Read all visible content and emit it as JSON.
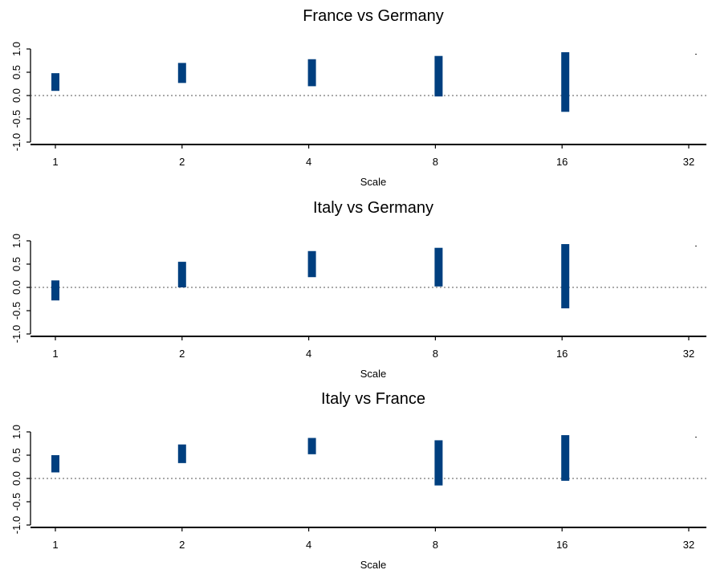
{
  "colors": {
    "bar": "#003f7f",
    "axis": "#000000",
    "zero_line": "#555555"
  },
  "chart_data": [
    {
      "type": "bar",
      "subtype": "range",
      "title": "France vs Germany",
      "xlabel": "Scale",
      "ylabel": "",
      "x_scale": "log2",
      "xticks": [
        "1",
        "2",
        "4",
        "8",
        "16",
        "32"
      ],
      "yticks": [
        "-1.0",
        "-0.5",
        "0.0",
        "0.5",
        "1.0"
      ],
      "ylim": [
        -1.0,
        1.0
      ],
      "zero_line": "dotted",
      "series": [
        {
          "values": [
            {
              "x": 1,
              "low": 0.1,
              "high": 0.48
            },
            {
              "x": 2,
              "low": 0.27,
              "high": 0.7
            },
            {
              "x": 4,
              "low": 0.2,
              "high": 0.78
            },
            {
              "x": 8,
              "low": -0.02,
              "high": 0.85
            },
            {
              "x": 16,
              "low": -0.35,
              "high": 0.93
            }
          ]
        }
      ]
    },
    {
      "type": "bar",
      "subtype": "range",
      "title": "Italy vs Germany",
      "xlabel": "Scale",
      "ylabel": "",
      "x_scale": "log2",
      "xticks": [
        "1",
        "2",
        "4",
        "8",
        "16",
        "32"
      ],
      "yticks": [
        "-1.0",
        "-0.5",
        "0.0",
        "0.5",
        "1.0"
      ],
      "ylim": [
        -1.0,
        1.0
      ],
      "zero_line": "dotted",
      "series": [
        {
          "values": [
            {
              "x": 1,
              "low": -0.28,
              "high": 0.15
            },
            {
              "x": 2,
              "low": 0.0,
              "high": 0.55
            },
            {
              "x": 4,
              "low": 0.22,
              "high": 0.78
            },
            {
              "x": 8,
              "low": 0.02,
              "high": 0.85
            },
            {
              "x": 16,
              "low": -0.45,
              "high": 0.93
            }
          ]
        }
      ]
    },
    {
      "type": "bar",
      "subtype": "range",
      "title": "Italy vs France",
      "xlabel": "Scale",
      "ylabel": "",
      "x_scale": "log2",
      "xticks": [
        "1",
        "2",
        "4",
        "8",
        "16",
        "32"
      ],
      "yticks": [
        "-1.0",
        "-0.5",
        "0.0",
        "0.5",
        "1.0"
      ],
      "ylim": [
        -1.0,
        1.0
      ],
      "zero_line": "dotted",
      "series": [
        {
          "values": [
            {
              "x": 1,
              "low": 0.13,
              "high": 0.5
            },
            {
              "x": 2,
              "low": 0.33,
              "high": 0.73
            },
            {
              "x": 4,
              "low": 0.52,
              "high": 0.87
            },
            {
              "x": 8,
              "low": -0.15,
              "high": 0.82
            },
            {
              "x": 16,
              "low": -0.05,
              "high": 0.93
            }
          ]
        }
      ]
    }
  ]
}
